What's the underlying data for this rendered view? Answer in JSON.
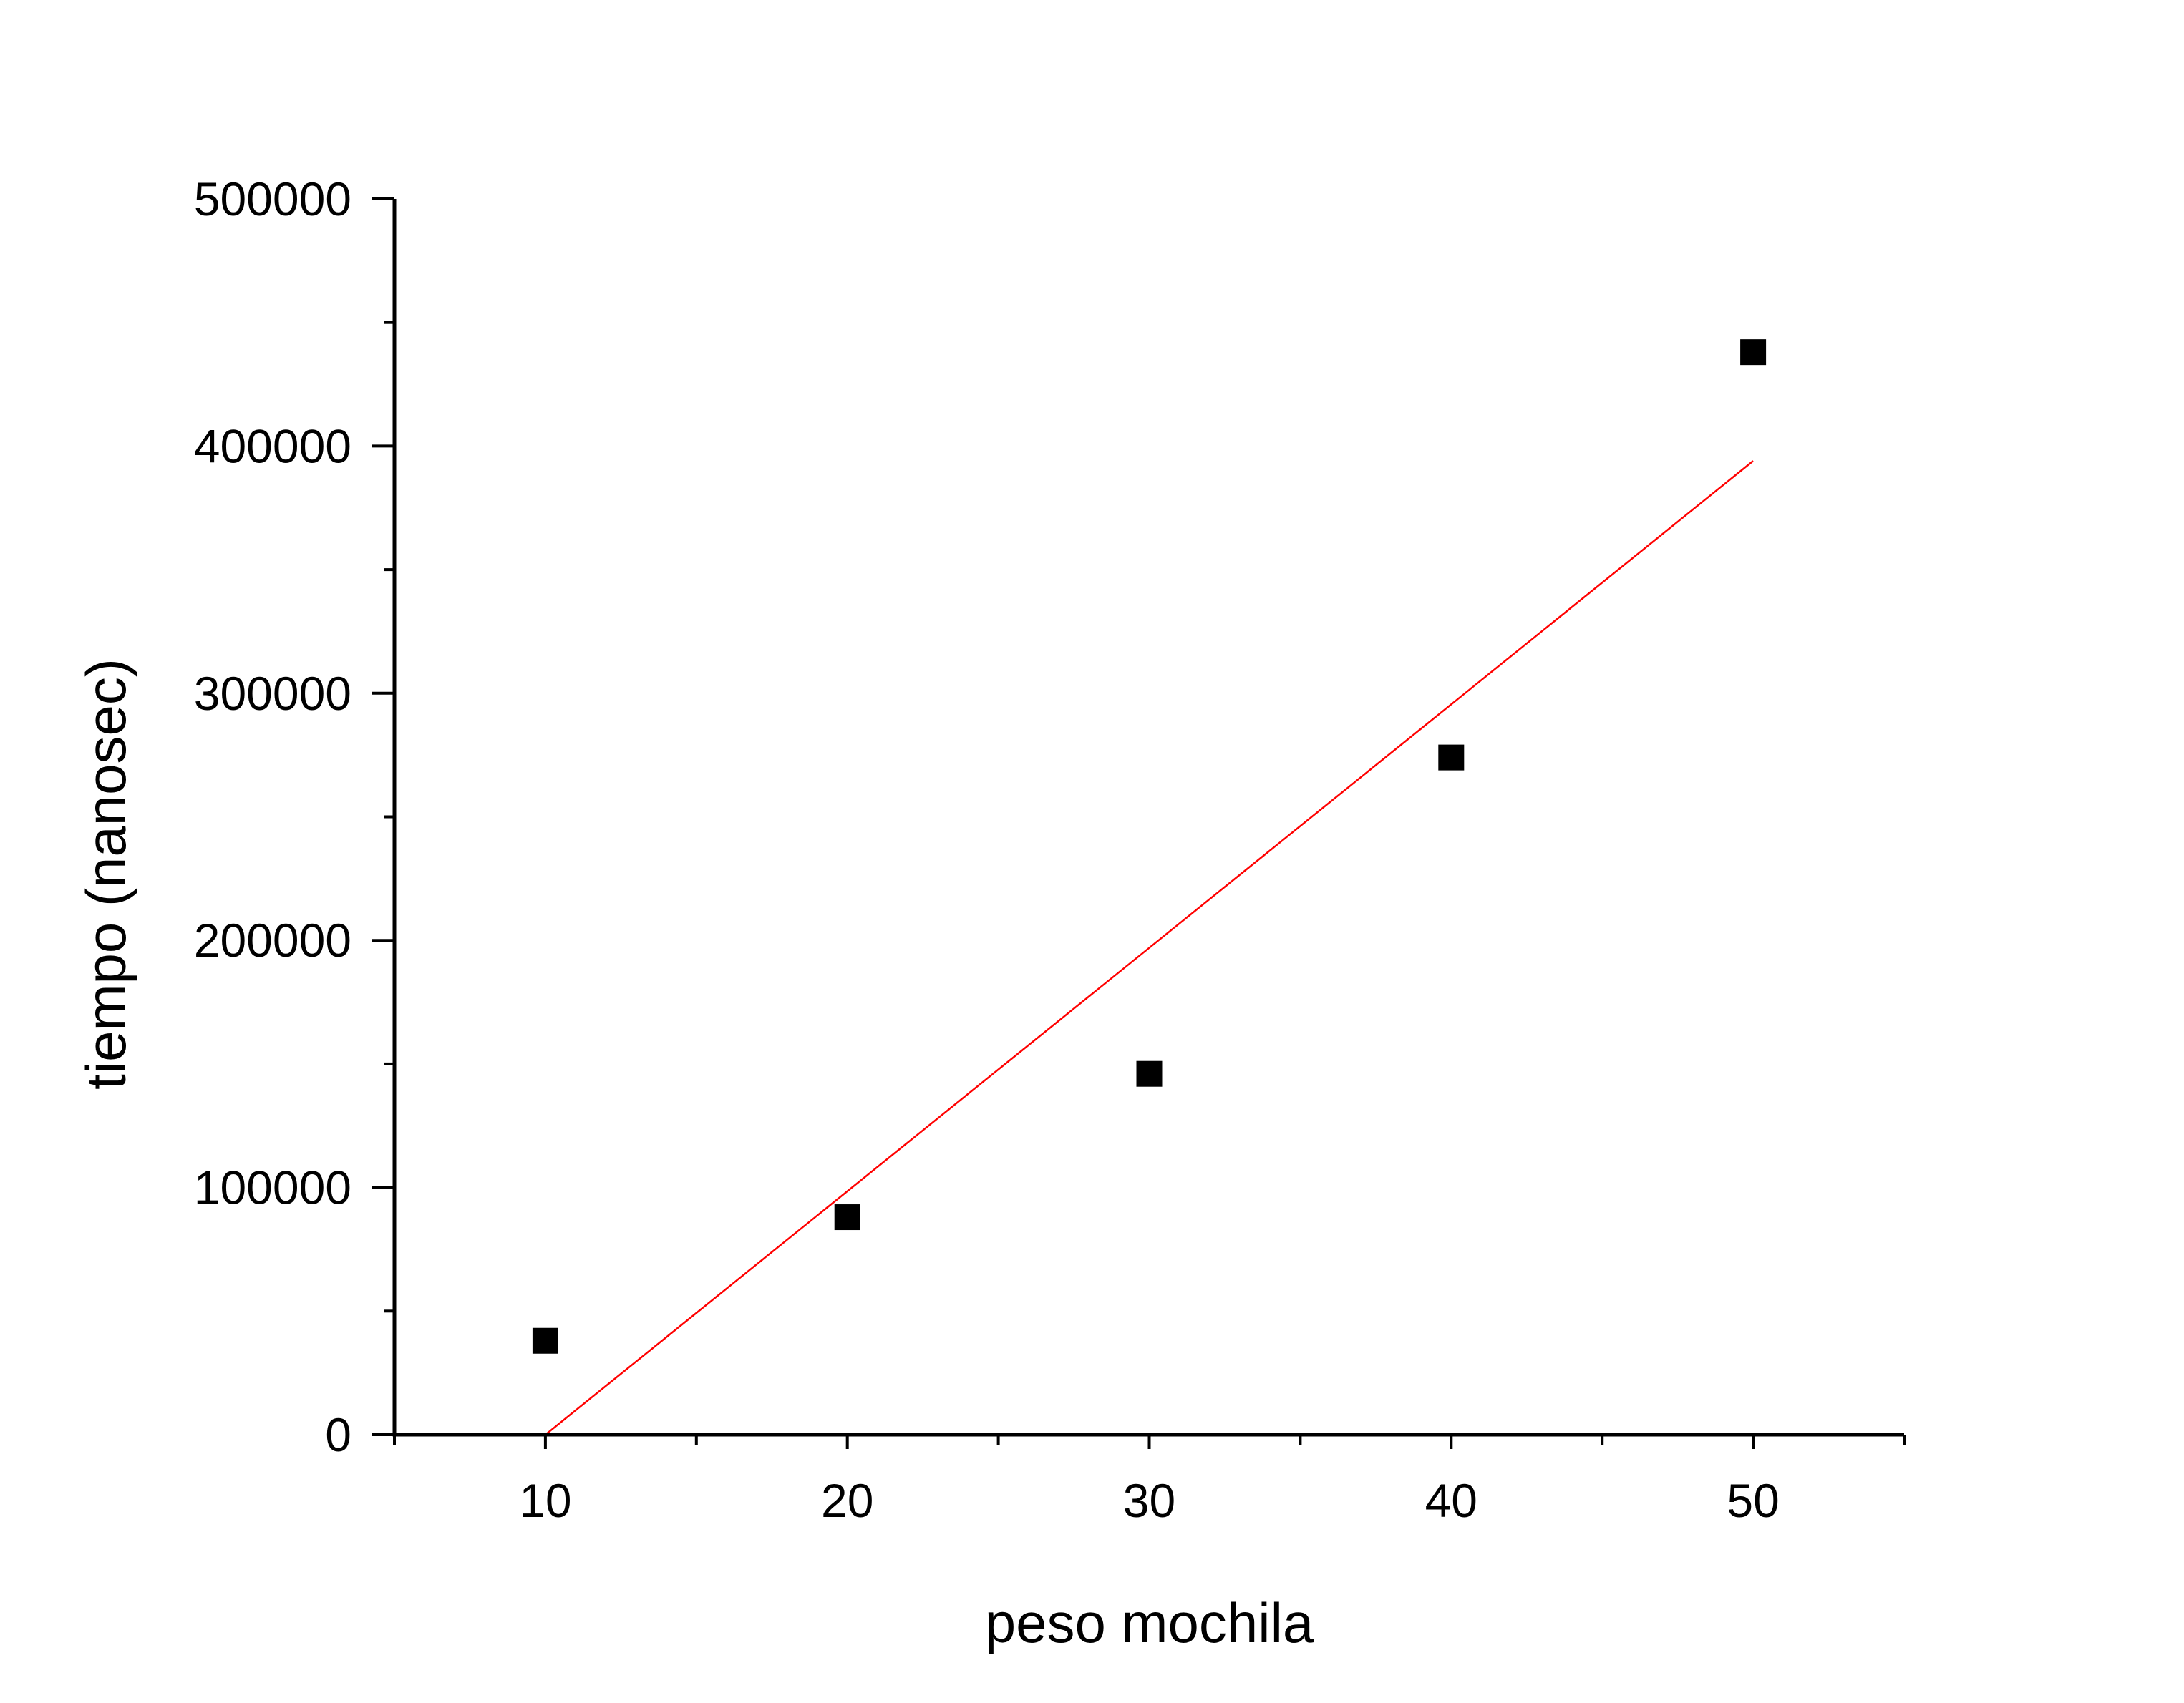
{
  "chart_data": {
    "type": "scatter",
    "title": "",
    "xlabel": "peso mochila",
    "ylabel": "tiempo (nanosec)",
    "xlim": [
      5,
      55
    ],
    "ylim": [
      0,
      500000
    ],
    "x_ticks": [
      10,
      20,
      30,
      40,
      50
    ],
    "x_tick_labels": [
      "10",
      "20",
      "30",
      "40",
      "50"
    ],
    "y_ticks": [
      0,
      100000,
      200000,
      300000,
      400000,
      500000
    ],
    "y_tick_labels": [
      "0",
      "100000",
      "200000",
      "300000",
      "400000",
      "500000"
    ],
    "grid": false,
    "legend": "none",
    "series": [
      {
        "kind": "scatter",
        "marker": "square",
        "color": "#000000",
        "x": [
          10,
          20,
          30,
          40,
          50
        ],
        "y": [
          38000,
          88000,
          146000,
          274000,
          438000
        ]
      }
    ],
    "fit_line": {
      "kind": "line",
      "color": "#ff0000",
      "x": [
        10,
        50
      ],
      "y": [
        0,
        394000
      ]
    }
  }
}
